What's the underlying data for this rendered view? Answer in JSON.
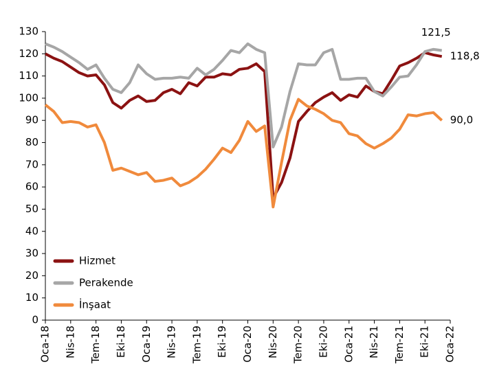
{
  "chart_data": {
    "type": "line",
    "categories": [
      "Oca-18",
      null,
      null,
      "Nis-18",
      null,
      null,
      "Tem-18",
      null,
      null,
      "Eki-18",
      null,
      null,
      "Oca-19",
      null,
      null,
      "Nis-19",
      null,
      null,
      "Tem-19",
      null,
      null,
      "Eki-19",
      null,
      null,
      "Oca-20",
      null,
      null,
      "Nis-20",
      null,
      null,
      "Tem-20",
      null,
      null,
      "Eki-20",
      null,
      null,
      "Oca-21",
      null,
      null,
      "Nis-21",
      null,
      null,
      "Tem-21",
      null,
      null,
      "Eki-21",
      null,
      null,
      "Oca-22"
    ],
    "series": [
      {
        "name": "Hizmet",
        "color": "#8b1212",
        "values": [
          120,
          118,
          116.5,
          114,
          111.5,
          110,
          110.5,
          106,
          98,
          95.5,
          99,
          101,
          98.5,
          99,
          102.5,
          104,
          102,
          107,
          105.5,
          109.5,
          109.5,
          111,
          110.5,
          113,
          113.5,
          115.5,
          112,
          55,
          62,
          73,
          89.5,
          94,
          98,
          100.5,
          102.5,
          99,
          101.5,
          100.5,
          105.5,
          103,
          102,
          108,
          114.5,
          116,
          118,
          120.5,
          119.5,
          118.8,
          null
        ],
        "value_labels": [
          null,
          null,
          null,
          null,
          null,
          null,
          null,
          null,
          null,
          null,
          null,
          null,
          null,
          null,
          null,
          null,
          null,
          null,
          null,
          null,
          null,
          null,
          null,
          null,
          null,
          null,
          null,
          null,
          null,
          null,
          null,
          null,
          null,
          null,
          null,
          null,
          null,
          null,
          null,
          null,
          null,
          null,
          null,
          null,
          null,
          null,
          null,
          "118,8",
          null
        ]
      },
      {
        "name": "Perakende",
        "color": "#a6a6a6",
        "values": [
          124.5,
          123,
          121,
          118.5,
          116,
          113,
          115,
          109,
          104,
          102.5,
          107,
          115,
          111,
          108.5,
          109,
          109,
          109.5,
          109,
          113.5,
          110.5,
          113,
          117,
          121.5,
          120.5,
          124.5,
          122,
          120.5,
          78,
          87,
          103,
          115.5,
          115,
          115,
          120.5,
          122,
          108.5,
          108.5,
          109,
          109,
          103,
          101,
          105,
          109.5,
          110,
          115,
          121,
          122,
          121.5,
          null
        ],
        "value_labels": [
          null,
          null,
          null,
          null,
          null,
          null,
          null,
          null,
          null,
          null,
          null,
          null,
          null,
          null,
          null,
          null,
          null,
          null,
          null,
          null,
          null,
          null,
          null,
          null,
          null,
          null,
          null,
          null,
          null,
          null,
          null,
          null,
          null,
          null,
          null,
          null,
          null,
          null,
          null,
          null,
          null,
          null,
          null,
          null,
          null,
          null,
          null,
          "121,5",
          null
        ]
      },
      {
        "name": "İnşaat",
        "color": "#f08a3c",
        "values": [
          97,
          94,
          89,
          89.5,
          89,
          87,
          88,
          80,
          67.5,
          68.5,
          67,
          65.5,
          66.5,
          62.5,
          63,
          64,
          60.5,
          62,
          64.5,
          68,
          72.5,
          77.5,
          75.5,
          81,
          89.5,
          85,
          87.5,
          51,
          71,
          90,
          99.5,
          96.5,
          95,
          93,
          90,
          89,
          84,
          83,
          79.5,
          77.5,
          79.5,
          82,
          86,
          92.5,
          92,
          93,
          93.5,
          90,
          null
        ],
        "value_labels": [
          null,
          null,
          null,
          null,
          null,
          null,
          null,
          null,
          null,
          null,
          null,
          null,
          null,
          null,
          null,
          null,
          null,
          null,
          null,
          null,
          null,
          null,
          null,
          null,
          null,
          null,
          null,
          null,
          null,
          null,
          null,
          null,
          null,
          null,
          null,
          null,
          null,
          null,
          null,
          null,
          null,
          null,
          null,
          null,
          null,
          null,
          null,
          "90,0",
          null
        ]
      }
    ],
    "ylim": [
      0,
      130
    ],
    "yticks": [
      0,
      10,
      20,
      30,
      40,
      50,
      60,
      70,
      80,
      90,
      100,
      110,
      120,
      130
    ],
    "grid": false,
    "legend": "lower left"
  }
}
